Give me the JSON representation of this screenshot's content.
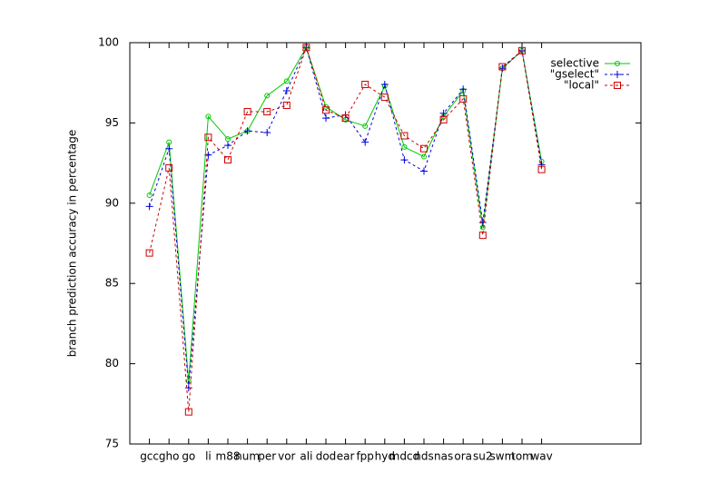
{
  "chart_data": {
    "type": "line",
    "y_label": "branch prediction accuracy in percentage",
    "categories": [
      "gcc",
      "gho",
      "go",
      "li",
      "m88",
      "num",
      "per",
      "vor",
      "ali",
      "dod",
      "ear",
      "fpp",
      "hyd",
      "mdcd",
      "nds",
      "nas",
      "ora",
      "su2",
      "swm",
      "tom",
      "wav"
    ],
    "series": [
      {
        "name": "selective",
        "color": "#00c800",
        "marker": "circle",
        "dash": false,
        "values": [
          90.5,
          93.8,
          78.9,
          95.4,
          94.0,
          94.5,
          96.7,
          97.6,
          99.7,
          96.0,
          95.2,
          94.8,
          97.3,
          93.5,
          92.9,
          95.4,
          97.0,
          88.5,
          98.4,
          99.5,
          92.6
        ]
      },
      {
        "name": "\"gselect\"",
        "color": "#0000dd",
        "marker": "plus",
        "dash": true,
        "values": [
          89.8,
          93.4,
          78.5,
          93.0,
          93.6,
          94.5,
          94.4,
          97.0,
          99.7,
          95.3,
          95.5,
          93.8,
          97.4,
          92.7,
          92.0,
          95.6,
          97.1,
          88.8,
          98.4,
          99.5,
          92.4
        ]
      },
      {
        "name": "\"local\"",
        "color": "#cc0000",
        "marker": "square",
        "dash": true,
        "values": [
          86.9,
          92.2,
          77.0,
          94.1,
          92.7,
          95.7,
          95.7,
          96.1,
          99.7,
          95.8,
          95.3,
          97.4,
          96.6,
          94.2,
          93.4,
          95.2,
          96.5,
          88.0,
          98.5,
          99.5,
          92.1
        ]
      }
    ],
    "ylim": [
      75,
      100
    ],
    "yticks": [
      75,
      80,
      85,
      90,
      95,
      100
    ],
    "legend": "top-right"
  }
}
